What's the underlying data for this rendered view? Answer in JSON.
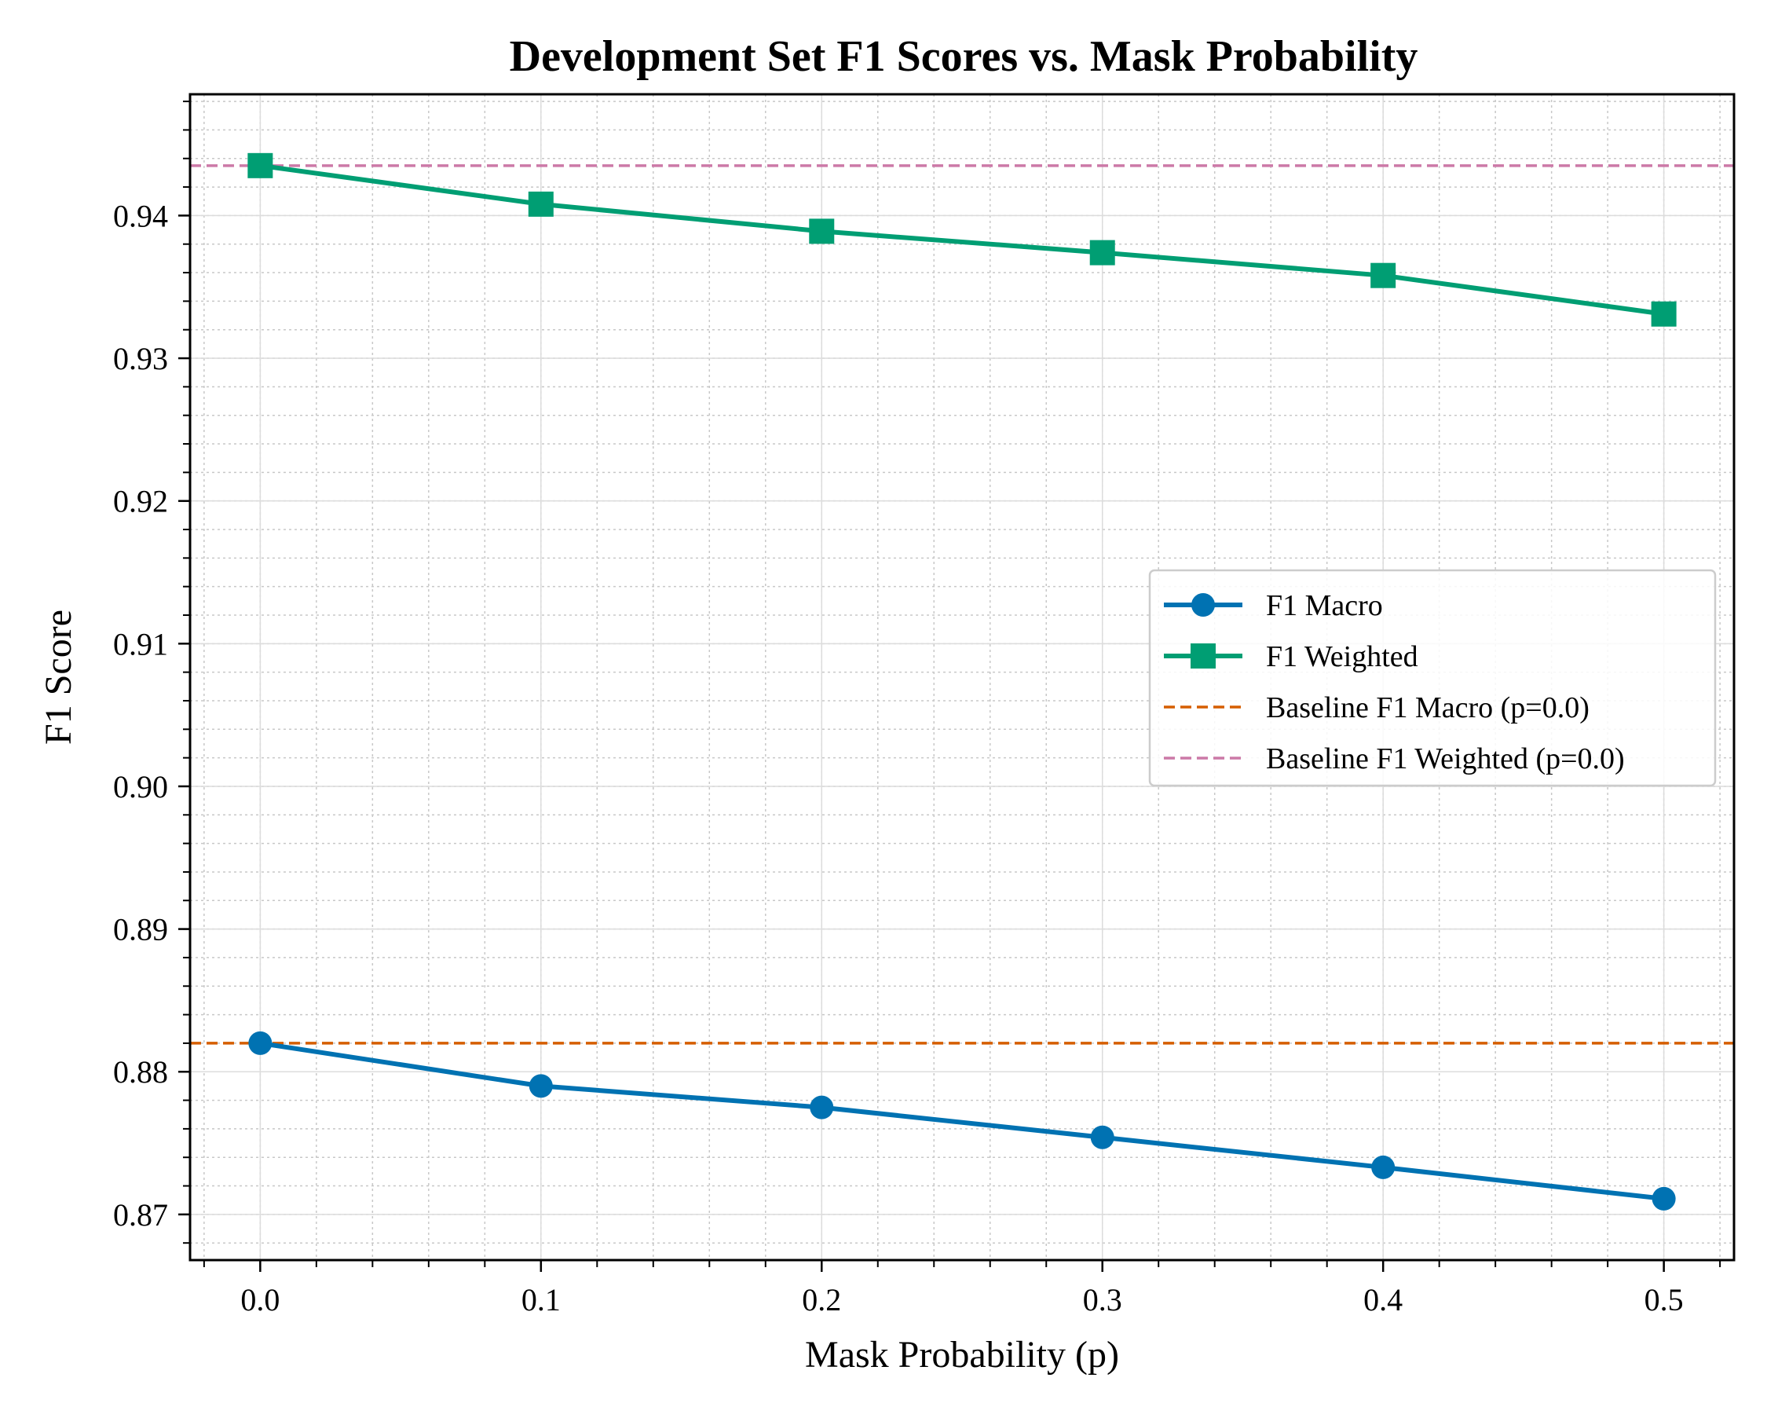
{
  "chart_data": {
    "type": "line",
    "title": "Development Set F1 Scores vs. Mask Probability",
    "xlabel": "Mask Probability (p)",
    "ylabel": "F1 Score",
    "x": [
      0.0,
      0.1,
      0.2,
      0.3,
      0.4,
      0.5
    ],
    "xlim": [
      -0.025,
      0.525
    ],
    "ylim": [
      0.8668,
      0.9485
    ],
    "xticks": [
      0.0,
      0.1,
      0.2,
      0.3,
      0.4,
      0.5
    ],
    "xtick_labels": [
      "0.0",
      "0.1",
      "0.2",
      "0.3",
      "0.4",
      "0.5"
    ],
    "yticks": [
      0.87,
      0.88,
      0.89,
      0.9,
      0.91,
      0.92,
      0.93,
      0.94
    ],
    "ytick_labels": [
      "0.87",
      "0.88",
      "0.89",
      "0.90",
      "0.91",
      "0.92",
      "0.93",
      "0.94"
    ],
    "grid": true,
    "minor_grid": true,
    "legend_position": "center-right",
    "series": [
      {
        "name": "F1 Macro",
        "values": [
          0.882,
          0.879,
          0.8775,
          0.8754,
          0.8733,
          0.8711
        ],
        "color": "#0072B2",
        "marker": "circle",
        "linestyle": "solid"
      },
      {
        "name": "F1 Weighted",
        "values": [
          0.9435,
          0.9408,
          0.9389,
          0.9374,
          0.9358,
          0.9331
        ],
        "color": "#009E73",
        "marker": "square",
        "linestyle": "solid"
      }
    ],
    "reference_lines": [
      {
        "name": "Baseline F1 Macro (p=0.0)",
        "y": 0.882,
        "color": "#D55E00",
        "linestyle": "dashed"
      },
      {
        "name": "Baseline F1 Weighted (p=0.0)",
        "y": 0.9435,
        "color": "#CC79A7",
        "linestyle": "dashed"
      }
    ]
  }
}
